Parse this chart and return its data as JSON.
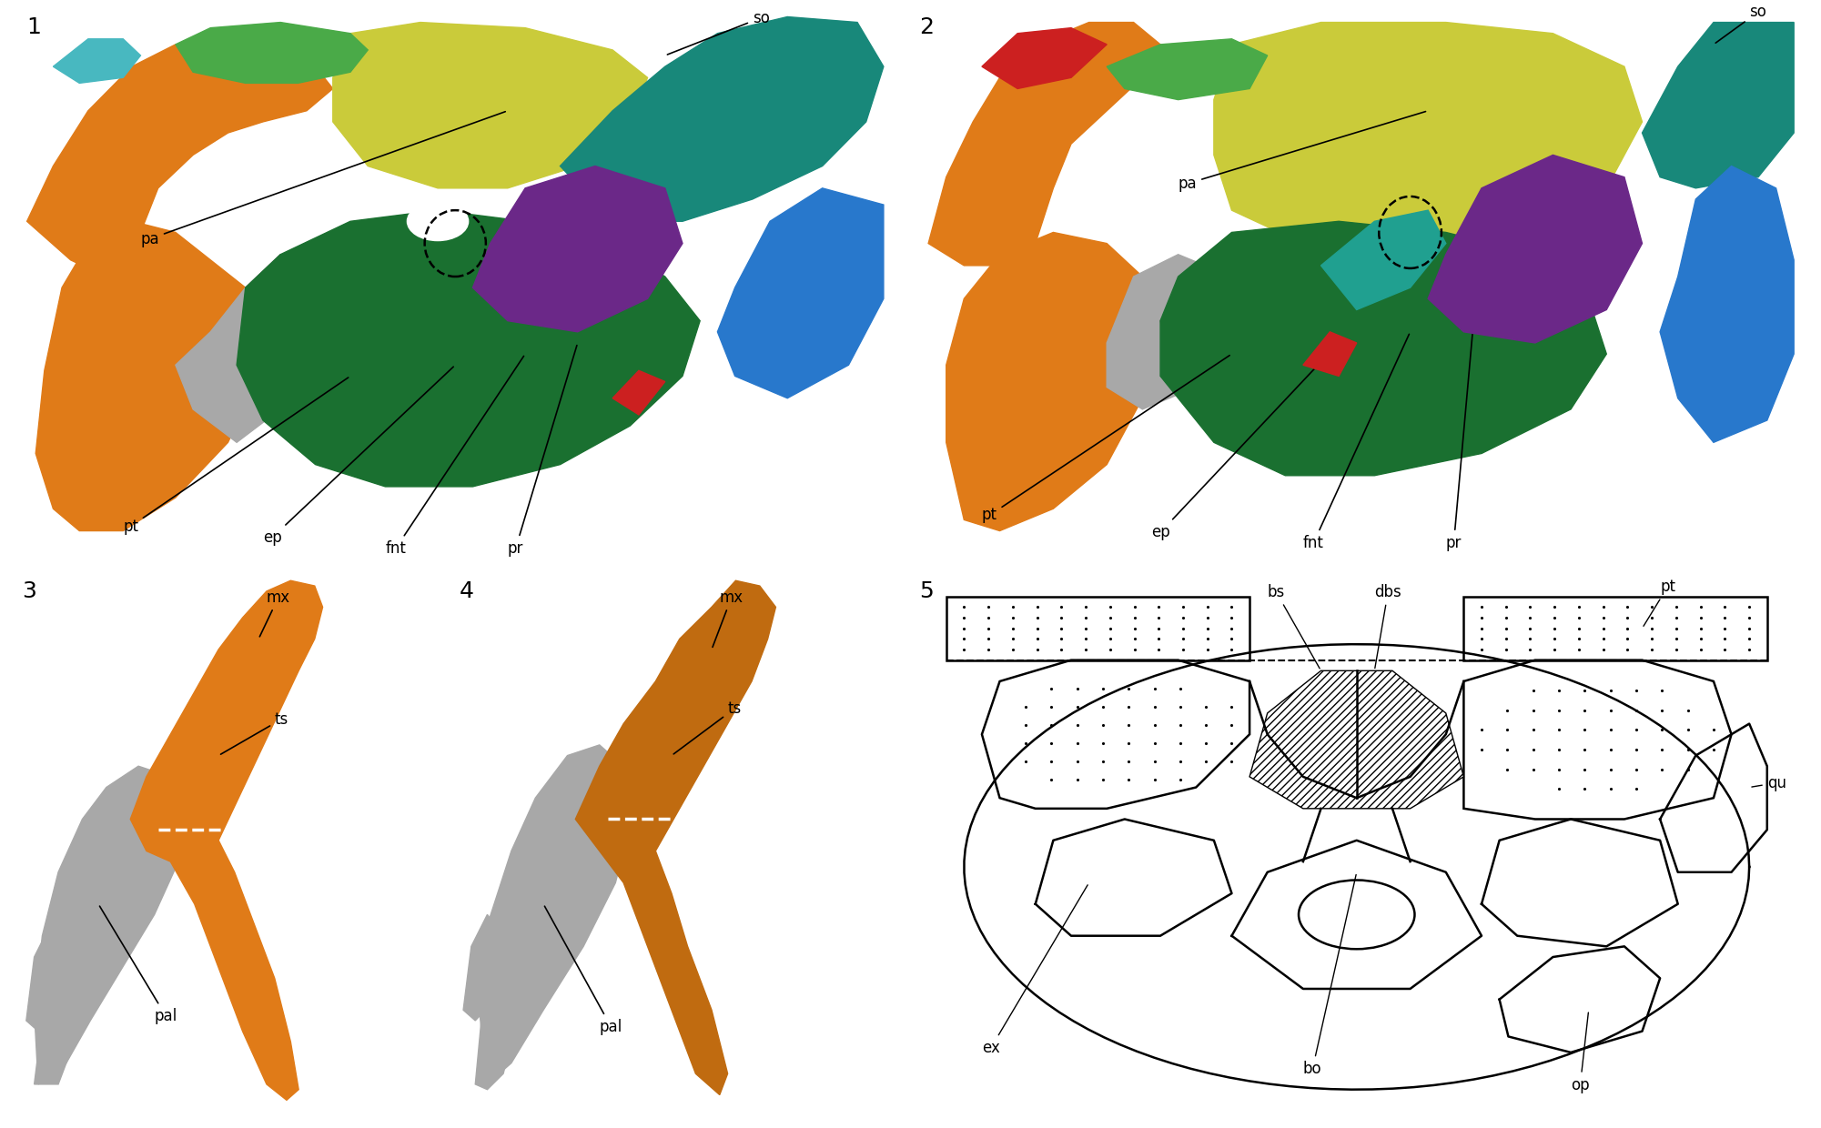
{
  "background_color": "#ffffff",
  "label_fontsize": 18,
  "annot_fontsize": 12,
  "panel_positions": {
    "p1": [
      0.01,
      0.5,
      0.48,
      0.49
    ],
    "p2": [
      0.5,
      0.5,
      0.49,
      0.49
    ],
    "p3": [
      0.01,
      0.02,
      0.22,
      0.47
    ],
    "p4": [
      0.25,
      0.02,
      0.22,
      0.47
    ],
    "p5": [
      0.5,
      0.02,
      0.49,
      0.47
    ]
  },
  "colors": {
    "orange": "#E07B18",
    "orange_dark": "#C06B10",
    "red": "#CC2020",
    "yellow": "#CACB3A",
    "green_lt": "#4AAA48",
    "green_dk": "#1A7030",
    "teal": "#18887A",
    "teal2": "#20A090",
    "purple": "#6B2888",
    "blue": "#2878CC",
    "cyan": "#48B8C0",
    "gray": "#A8A8A8",
    "gray_dk": "#707070",
    "white": "#FFFFFF"
  }
}
